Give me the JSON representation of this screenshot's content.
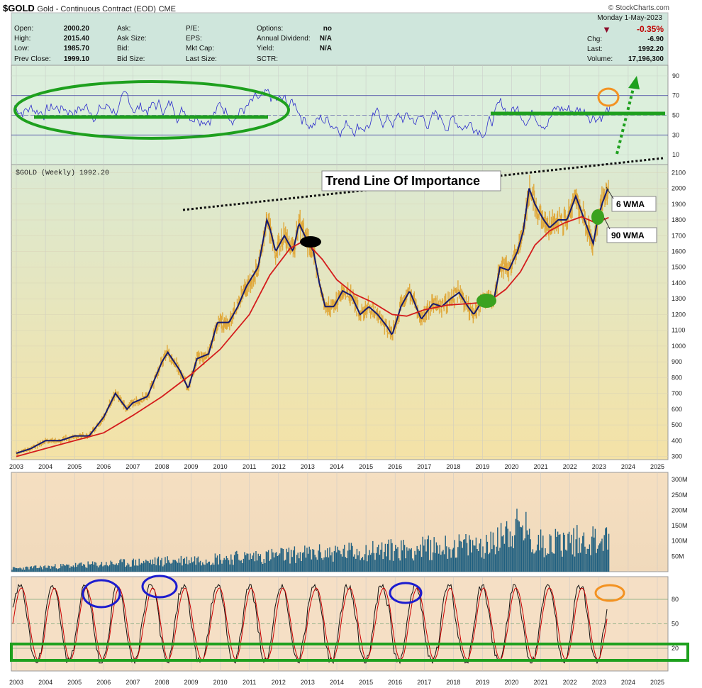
{
  "header": {
    "symbol": "$GOLD",
    "name": "Gold - Continuous Contract (EOD)",
    "exchange": "CME",
    "site": "© StockCharts.com",
    "date": "Monday  1-May-2023",
    "change_pct": "-0.35%",
    "chg_label": "Chg:",
    "chg_value": "-6.90",
    "last_label": "Last:",
    "last_value": "1992.20",
    "volume_label": "Volume:",
    "volume_value": "17,196,300",
    "down_color": "#c00000",
    "stats": [
      {
        "label": "Open:",
        "value": "2000.20"
      },
      {
        "label": "High:",
        "value": "2015.40"
      },
      {
        "label": "Low:",
        "value": "1985.70"
      },
      {
        "label": "Prev Close:",
        "value": "1999.10"
      }
    ],
    "stats2": [
      {
        "label": "Ask:",
        "value": ""
      },
      {
        "label": "Ask Size:",
        "value": ""
      },
      {
        "label": "Bid:",
        "value": ""
      },
      {
        "label": "Bid Size:",
        "value": ""
      }
    ],
    "stats3": [
      {
        "label": "P/E:",
        "value": ""
      },
      {
        "label": "EPS:",
        "value": ""
      },
      {
        "label": "Mkt Cap:",
        "value": ""
      },
      {
        "label": "Last Size:",
        "value": ""
      }
    ],
    "stats4": [
      {
        "label": "Options:",
        "value": "no"
      },
      {
        "label": "Annual Dividend:",
        "value": "N/A"
      },
      {
        "label": "Yield:",
        "value": "N/A"
      },
      {
        "label": "SCTR:",
        "value": ""
      }
    ]
  },
  "chart_data": [
    {
      "panel": "rsi-top",
      "type": "line",
      "y_ticks": [
        90,
        70,
        50,
        30,
        10
      ],
      "reference_lines": [
        70,
        50,
        30
      ],
      "ylim": [
        0,
        100
      ],
      "color": "#2b2bcc",
      "series_note": "oscillating indicator, weekly",
      "x_years": [
        2003,
        2025
      ]
    },
    {
      "panel": "price",
      "type": "line",
      "legend": "$GOLD (Weekly) 1992.20",
      "y_ticks": [
        2100,
        2000,
        1900,
        1800,
        1700,
        1600,
        1500,
        1400,
        1300,
        1200,
        1100,
        1000,
        900,
        800,
        700,
        600,
        500,
        400,
        300
      ],
      "ylim": [
        280,
        2150
      ],
      "x_ticks": [
        "2003",
        "2004",
        "2005",
        "2006",
        "2007",
        "2008",
        "2009",
        "2010",
        "2011",
        "2012",
        "2013",
        "2014",
        "2015",
        "2016",
        "2017",
        "2018",
        "2019",
        "2020",
        "2021",
        "2022",
        "2023",
        "2024",
        "2025"
      ],
      "price_path": [
        [
          2003.0,
          320
        ],
        [
          2003.5,
          350
        ],
        [
          2004.0,
          400
        ],
        [
          2004.5,
          400
        ],
        [
          2005.0,
          430
        ],
        [
          2005.5,
          430
        ],
        [
          2006.0,
          550
        ],
        [
          2006.4,
          700
        ],
        [
          2006.8,
          600
        ],
        [
          2007.0,
          640
        ],
        [
          2007.5,
          680
        ],
        [
          2008.0,
          900
        ],
        [
          2008.2,
          960
        ],
        [
          2008.6,
          850
        ],
        [
          2008.9,
          730
        ],
        [
          2009.2,
          920
        ],
        [
          2009.6,
          950
        ],
        [
          2009.9,
          1150
        ],
        [
          2010.3,
          1150
        ],
        [
          2010.6,
          1250
        ],
        [
          2010.9,
          1380
        ],
        [
          2011.3,
          1500
        ],
        [
          2011.6,
          1800
        ],
        [
          2011.7,
          1750
        ],
        [
          2011.9,
          1600
        ],
        [
          2012.2,
          1700
        ],
        [
          2012.5,
          1600
        ],
        [
          2012.7,
          1780
        ],
        [
          2012.9,
          1700
        ],
        [
          2013.2,
          1600
        ],
        [
          2013.4,
          1400
        ],
        [
          2013.6,
          1250
        ],
        [
          2013.9,
          1250
        ],
        [
          2014.2,
          1350
        ],
        [
          2014.5,
          1320
        ],
        [
          2014.8,
          1200
        ],
        [
          2015.1,
          1250
        ],
        [
          2015.4,
          1200
        ],
        [
          2015.7,
          1130
        ],
        [
          2015.9,
          1070
        ],
        [
          2016.2,
          1250
        ],
        [
          2016.5,
          1350
        ],
        [
          2016.9,
          1170
        ],
        [
          2017.3,
          1270
        ],
        [
          2017.6,
          1250
        ],
        [
          2017.9,
          1300
        ],
        [
          2018.2,
          1340
        ],
        [
          2018.5,
          1250
        ],
        [
          2018.7,
          1200
        ],
        [
          2019.0,
          1290
        ],
        [
          2019.4,
          1300
        ],
        [
          2019.6,
          1500
        ],
        [
          2019.9,
          1480
        ],
        [
          2020.2,
          1600
        ],
        [
          2020.4,
          1730
        ],
        [
          2020.6,
          2000
        ],
        [
          2020.8,
          1900
        ],
        [
          2021.1,
          1800
        ],
        [
          2021.3,
          1750
        ],
        [
          2021.6,
          1800
        ],
        [
          2021.9,
          1800
        ],
        [
          2022.2,
          1950
        ],
        [
          2022.4,
          1850
        ],
        [
          2022.6,
          1750
        ],
        [
          2022.8,
          1650
        ],
        [
          2022.95,
          1800
        ],
        [
          2023.1,
          1900
        ],
        [
          2023.3,
          2000
        ],
        [
          2023.33,
          1992
        ]
      ],
      "wma90_path": [
        [
          2003.0,
          300
        ],
        [
          2004.0,
          350
        ],
        [
          2005.0,
          400
        ],
        [
          2006.0,
          450
        ],
        [
          2007.0,
          560
        ],
        [
          2008.0,
          680
        ],
        [
          2009.0,
          820
        ],
        [
          2010.0,
          980
        ],
        [
          2011.0,
          1200
        ],
        [
          2011.7,
          1450
        ],
        [
          2012.4,
          1620
        ],
        [
          2012.9,
          1670
        ],
        [
          2013.5,
          1550
        ],
        [
          2014.0,
          1420
        ],
        [
          2014.6,
          1330
        ],
        [
          2015.2,
          1280
        ],
        [
          2015.9,
          1200
        ],
        [
          2016.4,
          1190
        ],
        [
          2017.0,
          1230
        ],
        [
          2017.8,
          1260
        ],
        [
          2018.6,
          1270
        ],
        [
          2019.2,
          1280
        ],
        [
          2019.8,
          1360
        ],
        [
          2020.3,
          1470
        ],
        [
          2020.8,
          1640
        ],
        [
          2021.3,
          1730
        ],
        [
          2021.8,
          1780
        ],
        [
          2022.4,
          1820
        ],
        [
          2022.9,
          1780
        ],
        [
          2023.33,
          1815
        ]
      ],
      "labels": {
        "trend_line": "Trend Line Of Importance",
        "wma6": "6 WMA",
        "wma90": "90 WMA"
      }
    },
    {
      "panel": "volume",
      "type": "bar",
      "y_ticks": [
        "300M",
        "250M",
        "200M",
        "150M",
        "100M",
        "50M"
      ],
      "ylim": [
        0,
        320
      ],
      "color": "#1f5f80"
    },
    {
      "panel": "stochastic",
      "type": "line",
      "y_ticks": [
        80,
        50,
        20
      ],
      "reference_lines": [
        80,
        50,
        20
      ],
      "ylim": [
        0,
        100
      ],
      "colors": {
        "k": "#111111",
        "d": "#cc0000"
      }
    }
  ]
}
